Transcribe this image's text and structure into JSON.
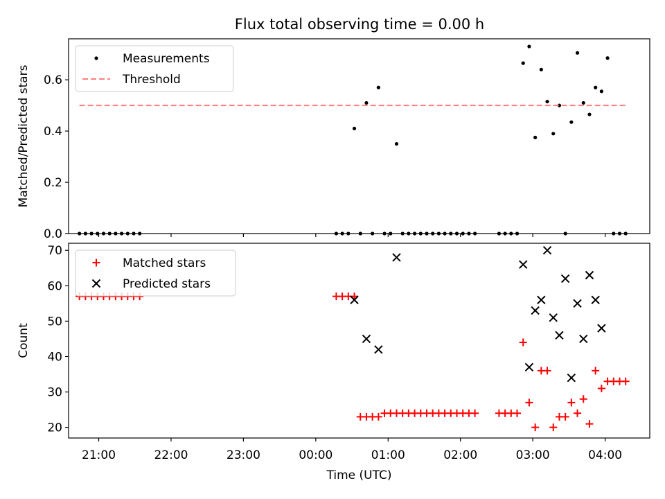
{
  "figure": {
    "title": "Flux total observing time = 0.00 h"
  },
  "colors": {
    "measurement": "#000000",
    "threshold": "#ff7f7f",
    "matched": "#ff0000",
    "predicted": "#000000",
    "axis": "#000000"
  },
  "chart_data": [
    {
      "type": "scatter",
      "title": "Flux total observing time = 0.00 h",
      "xlabel": "",
      "ylabel": "Matched/Predicted stars",
      "xlim": [
        "20:35",
        "04:37"
      ],
      "ylim": [
        0,
        0.76
      ],
      "grid": false,
      "legend_position": "upper-left",
      "x_tick_labels": [
        "21:00",
        "22:00",
        "23:00",
        "00:00",
        "01:00",
        "02:00",
        "03:00",
        "04:00"
      ],
      "y_ticks": [
        0.0,
        0.2,
        0.4,
        0.6
      ],
      "y_tick_labels": [
        "0.0",
        "0.2",
        "0.4",
        "0.6"
      ],
      "series": [
        {
          "name": "Measurements",
          "kind": "points",
          "x": [
            "20:44",
            "20:49",
            "20:54",
            "20:59",
            "21:04",
            "21:09",
            "21:14",
            "21:19",
            "21:24",
            "21:29",
            "21:34",
            "00:17",
            "00:22",
            "00:27",
            "00:32",
            "00:37",
            "00:42",
            "00:47",
            "00:52",
            "00:57",
            "01:02",
            "01:07",
            "01:12",
            "01:17",
            "01:22",
            "01:27",
            "01:32",
            "01:37",
            "01:42",
            "01:47",
            "01:52",
            "01:57",
            "02:02",
            "02:07",
            "02:12",
            "02:32",
            "02:37",
            "02:42",
            "02:47",
            "02:52",
            "02:57",
            "03:02",
            "03:07",
            "03:12",
            "03:17",
            "03:22",
            "03:27",
            "03:32",
            "03:37",
            "03:42",
            "03:47",
            "03:52",
            "03:57",
            "04:02",
            "04:07",
            "04:12",
            "04:17"
          ],
          "y": [
            0,
            0,
            0,
            0,
            0,
            0,
            0,
            0,
            0,
            0,
            0,
            0,
            0,
            0,
            0.41,
            0,
            0.51,
            0,
            0.57,
            0,
            0,
            0.35,
            0,
            0,
            0,
            0,
            0,
            0,
            0,
            0,
            0,
            0,
            0,
            0,
            0,
            0,
            0,
            0,
            0,
            0.665,
            0.73,
            0.375,
            0.64,
            0.515,
            0.39,
            0.5,
            0,
            0.435,
            0.705,
            0.51,
            0.465,
            0.57,
            0.555,
            0.685,
            0,
            0,
            0
          ]
        },
        {
          "name": "Threshold",
          "kind": "dashed-line",
          "x": [
            "20:44",
            "04:17"
          ],
          "y": [
            0.5,
            0.5
          ]
        }
      ]
    },
    {
      "type": "scatter",
      "title": "",
      "xlabel": "Time (UTC)",
      "ylabel": "Count",
      "xlim": [
        "20:35",
        "04:37"
      ],
      "ylim": [
        17,
        72
      ],
      "grid": false,
      "legend_position": "upper-left",
      "x_tick_labels": [
        "21:00",
        "22:00",
        "23:00",
        "00:00",
        "01:00",
        "02:00",
        "03:00",
        "04:00"
      ],
      "y_ticks": [
        20,
        30,
        40,
        50,
        60,
        70
      ],
      "y_tick_labels": [
        "20",
        "30",
        "40",
        "50",
        "60",
        "70"
      ],
      "series": [
        {
          "name": "Matched stars",
          "kind": "plus",
          "x": [
            "20:44",
            "20:49",
            "20:54",
            "20:59",
            "21:04",
            "21:09",
            "21:14",
            "21:19",
            "21:24",
            "21:29",
            "21:34",
            "00:17",
            "00:22",
            "00:27",
            "00:32",
            "00:37",
            "00:42",
            "00:47",
            "00:52",
            "00:57",
            "01:02",
            "01:07",
            "01:12",
            "01:17",
            "01:22",
            "01:27",
            "01:32",
            "01:37",
            "01:42",
            "01:47",
            "01:52",
            "01:57",
            "02:02",
            "02:07",
            "02:12",
            "02:32",
            "02:37",
            "02:42",
            "02:47",
            "02:52",
            "02:57",
            "03:02",
            "03:07",
            "03:12",
            "03:17",
            "03:22",
            "03:27",
            "03:32",
            "03:37",
            "03:42",
            "03:47",
            "03:52",
            "03:57",
            "04:02",
            "04:07",
            "04:12",
            "04:17"
          ],
          "y": [
            57,
            57,
            57,
            57,
            57,
            57,
            57,
            57,
            57,
            57,
            57,
            57,
            57,
            57,
            57,
            23,
            23,
            23,
            23,
            24,
            24,
            24,
            24,
            24,
            24,
            24,
            24,
            24,
            24,
            24,
            24,
            24,
            24,
            24,
            24,
            24,
            24,
            24,
            24,
            44,
            27,
            20,
            36,
            36,
            20,
            23,
            23,
            27,
            24,
            28,
            21,
            36,
            31,
            33,
            33,
            33,
            33
          ]
        },
        {
          "name": "Predicted stars",
          "kind": "cross",
          "x": [
            "00:32",
            "00:42",
            "00:52",
            "01:07",
            "02:52",
            "02:57",
            "03:02",
            "03:07",
            "03:12",
            "03:17",
            "03:22",
            "03:27",
            "03:32",
            "03:37",
            "03:42",
            "03:47",
            "03:52",
            "03:57"
          ],
          "y": [
            56,
            45,
            42,
            68,
            66,
            37,
            53,
            56,
            70,
            51,
            46,
            62,
            34,
            55,
            45,
            63,
            56,
            48
          ]
        }
      ]
    }
  ]
}
